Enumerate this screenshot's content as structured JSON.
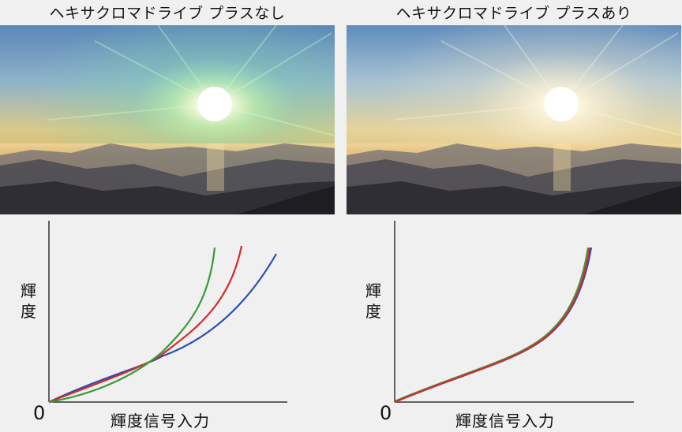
{
  "panels": [
    {
      "title": "ヘキサクロマドライブ プラスなし",
      "y_label": "輝度",
      "x_label": "輝度信号入力",
      "origin_label": "0"
    },
    {
      "title": "ヘキサクロマドライブ プラスあり",
      "y_label": "輝度",
      "x_label": "輝度信号入力",
      "origin_label": "0"
    }
  ],
  "colors": {
    "background": "#f0f0f0",
    "red_curve": "#d62a2a",
    "green_curve": "#3a9a3a",
    "blue_curve": "#2a4fb0",
    "axis": "#333333"
  }
}
